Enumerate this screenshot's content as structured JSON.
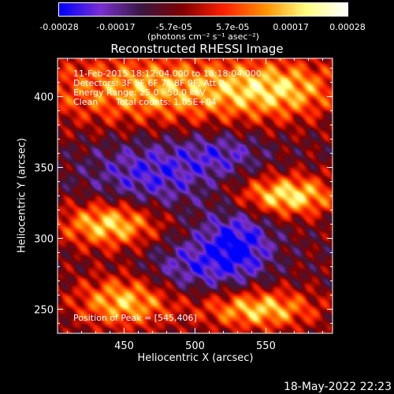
{
  "colorbar": {
    "tick_labels": [
      "-0.00028",
      "-0.00017",
      "-5.7e-05",
      "5.7e-05",
      "0.00017",
      "0.00028"
    ],
    "tick_values": [
      -0.00028,
      -0.00017,
      -5.7e-05,
      5.7e-05,
      0.00017,
      0.00028
    ],
    "range": [
      -0.00028,
      0.00028
    ],
    "unit_label": "(photons cm⁻² s⁻¹ asec⁻²)"
  },
  "chart_data": {
    "type": "heatmap",
    "title": "Reconstructed RHESSI Image",
    "xlabel": "Heliocentric X (arcsec)",
    "ylabel": "Heliocentric Y (arcsec)",
    "xlim": [
      403,
      597
    ],
    "ylim": [
      233,
      427
    ],
    "x_ticks": [
      450,
      500,
      550
    ],
    "y_ticks": [
      250,
      300,
      350,
      400
    ],
    "colormap": [
      "#0000ff",
      "#7a2fd0",
      "#3a1840",
      "#800000",
      "#ff2000",
      "#ff9000",
      "#ffff80",
      "#ffffff"
    ],
    "peak_position": [
      545,
      406
    ],
    "bright_regions": [
      {
        "x": 470,
        "y": 405,
        "rx": 85,
        "ry": 25,
        "level": 0.75
      },
      {
        "x": 560,
        "y": 405,
        "rx": 45,
        "ry": 20,
        "level": 0.65
      },
      {
        "x": 565,
        "y": 330,
        "rx": 35,
        "ry": 14,
        "level": 0.95
      },
      {
        "x": 440,
        "y": 310,
        "rx": 35,
        "ry": 16,
        "level": 0.9
      },
      {
        "x": 450,
        "y": 255,
        "rx": 35,
        "ry": 18,
        "level": 0.8
      },
      {
        "x": 545,
        "y": 250,
        "rx": 40,
        "ry": 14,
        "level": 0.85
      }
    ],
    "negative_regions": [
      {
        "x": 470,
        "y": 345,
        "rx": 45,
        "ry": 25,
        "level": -0.55
      },
      {
        "x": 530,
        "y": 295,
        "rx": 25,
        "ry": 25,
        "level": -0.75
      },
      {
        "x": 495,
        "y": 280,
        "rx": 30,
        "ry": 20,
        "level": -0.45
      },
      {
        "x": 520,
        "y": 360,
        "rx": 30,
        "ry": 15,
        "level": -0.4
      }
    ]
  },
  "info": {
    "time_range": "11-Feb-2015 18:12:04.000 to 18:18:04.000",
    "detectors": "Detectors: 3F 5F 6F 7F 8F 9F, Att 0",
    "energy": "Energy Range: 25.0 - 50.0 keV",
    "algorithm": "Clean",
    "counts": "Total counts: 1.05E+04",
    "peak": "Position of Peak = [545,406]"
  },
  "footer": {
    "date": "18-May-2022 22:23"
  }
}
